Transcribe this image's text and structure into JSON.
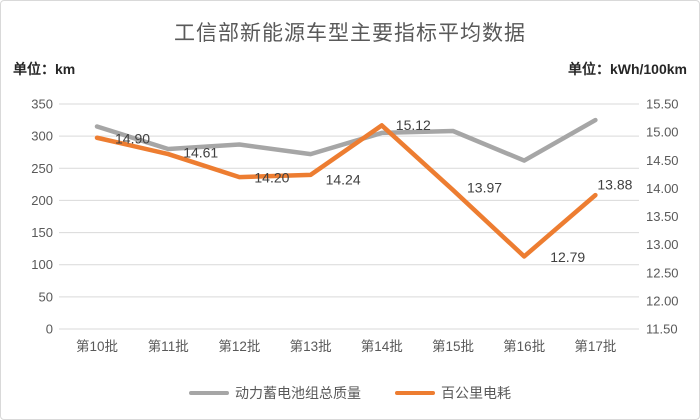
{
  "header": {
    "title": "工信部新能源车型主要指标平均数据",
    "left_unit": "单位：km",
    "right_unit": "单位：kWh/100km"
  },
  "chart_data": {
    "type": "line",
    "title": "工信部新能源车型主要指标平均数据",
    "categories": [
      "第10批",
      "第11批",
      "第12批",
      "第13批",
      "第14批",
      "第15批",
      "第16批",
      "第17批"
    ],
    "series": [
      {
        "name": "动力蓄电池组总质量",
        "axis": "left",
        "color": "#a6a6a6",
        "values": [
          315,
          280,
          287,
          272,
          305,
          308,
          262,
          325
        ],
        "data_labels": []
      },
      {
        "name": "百公里电耗",
        "axis": "right",
        "color": "#ed7d31",
        "values": [
          14.9,
          14.61,
          14.2,
          14.24,
          15.12,
          13.97,
          12.79,
          13.88
        ],
        "data_labels": [
          "14.90",
          "14.61",
          "14.20",
          "14.24",
          "15.12",
          "13.97",
          "12.79",
          "13.88"
        ]
      }
    ],
    "left_axis": {
      "unit": "单位：km",
      "min": 0,
      "max": 350,
      "ticks": [
        "350",
        "300",
        "250",
        "200",
        "150",
        "100",
        "50",
        "0"
      ]
    },
    "right_axis": {
      "unit": "单位：kWh/100km",
      "min": 11.5,
      "max": 15.5,
      "ticks": [
        "15.50",
        "15.00",
        "14.50",
        "14.00",
        "13.50",
        "13.00",
        "12.50",
        "12.00",
        "11.50"
      ]
    },
    "grid": true,
    "legend_position": "bottom"
  },
  "legend": {
    "items": [
      {
        "label": "动力蓄电池组总质量",
        "color": "#a6a6a6"
      },
      {
        "label": "百公里电耗",
        "color": "#ed7d31"
      }
    ]
  },
  "colors": {
    "grid": "#d9d9d9",
    "axis_text": "#595959",
    "data_label_text": "#404040",
    "title_text": "#595959",
    "series_gray": "#a6a6a6",
    "series_orange": "#ed7d31"
  }
}
